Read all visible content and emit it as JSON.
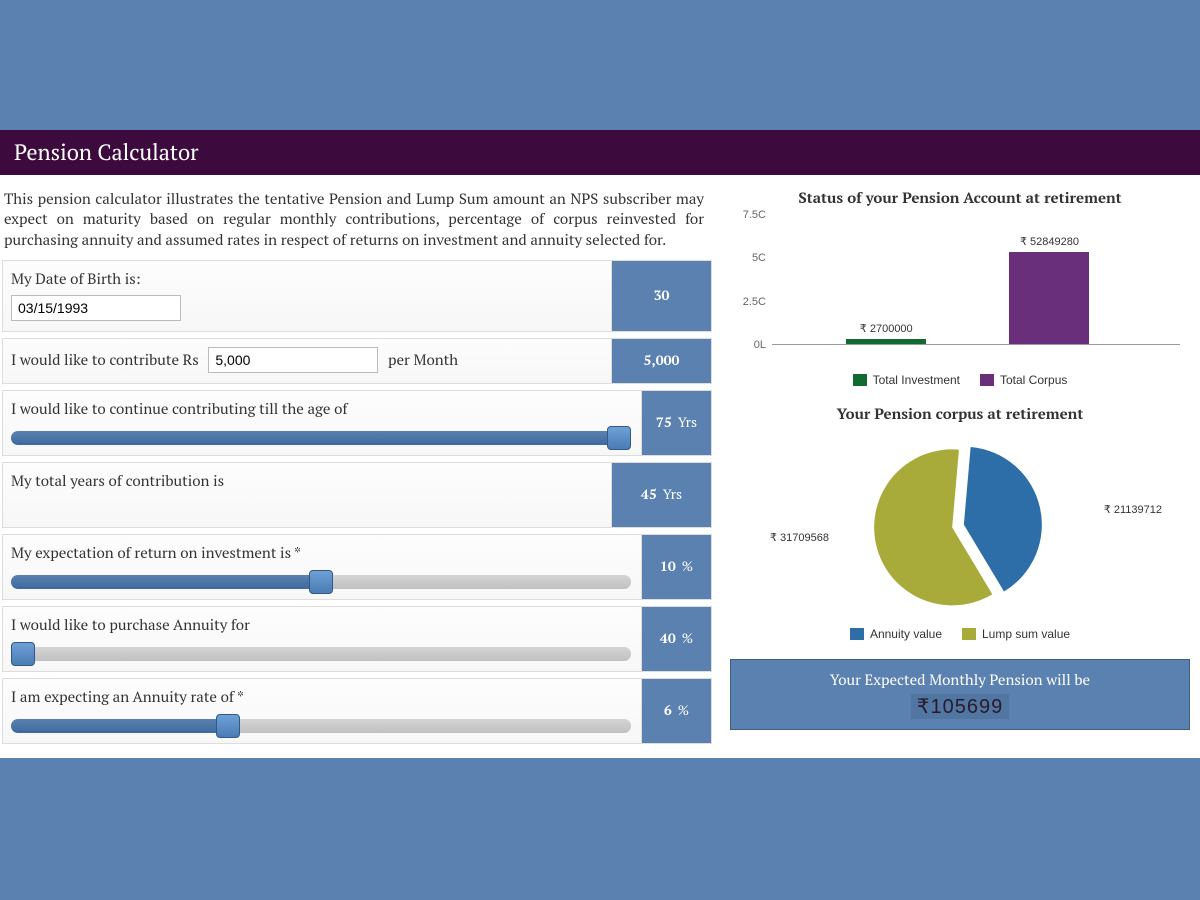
{
  "page": {
    "title": "Pension Calculator",
    "intro": "This pension calculator illustrates the tentative Pension and Lump Sum amount an NPS subscriber may expect on maturity based on regular monthly contributions, percentage of corpus reinvested for purchasing annuity and assumed rates in respect of returns on investment and annuity selected for."
  },
  "colors": {
    "page_bg": "#5a81b0",
    "header_bg": "#3c0a3c",
    "value_box_bg": "#5a81b0",
    "slider_fill": "#5a81b0",
    "bar_investment": "#0f6b2f",
    "bar_corpus": "#6a2f7a",
    "pie_annuity": "#2d6ea8",
    "pie_lumpsum": "#a8aa3a",
    "pie_gap": "#ffffff",
    "pension_amount_text": "#2a1a2a"
  },
  "form": {
    "dob": {
      "label": "My Date of Birth is:",
      "value": "03/15/1993",
      "display": "30",
      "unit": ""
    },
    "contribution": {
      "label_pre": "I would like to contribute Rs",
      "label_post": "per Month",
      "value": "5,000",
      "display": "5,000",
      "unit": ""
    },
    "age_till": {
      "label": "I would like to continue contributing till the age of",
      "display": "75",
      "unit": "Yrs",
      "slider_pct": 98
    },
    "total_years": {
      "label": "My total years of contribution is",
      "display": "45",
      "unit": "Yrs"
    },
    "roi": {
      "label": "My expectation of return on investment is *",
      "display": "10",
      "unit": "%",
      "slider_pct": 50
    },
    "annuity_pct": {
      "label": "I would like to purchase Annuity for",
      "display": "40",
      "unit": "%",
      "slider_pct": 2
    },
    "annuity_rate": {
      "label": "I am expecting an Annuity rate of *",
      "display": "6",
      "unit": "%",
      "slider_pct": 35
    }
  },
  "bar_chart": {
    "title": "Status of your Pension Account at retirement",
    "y_ticks": [
      "7.5C",
      "5C",
      "2.5C",
      "0L"
    ],
    "y_max": 75000000,
    "bars": [
      {
        "label": "₹ 2700000",
        "value": 2700000,
        "color": "#0f6b2f",
        "x_pct": 28
      },
      {
        "label": "₹ 52849280",
        "value": 52849280,
        "color": "#6a2f7a",
        "x_pct": 68
      }
    ],
    "legend": [
      {
        "swatch": "#0f6b2f",
        "text": "Total Investment"
      },
      {
        "swatch": "#6a2f7a",
        "text": "Total Corpus"
      }
    ]
  },
  "pie_chart": {
    "title": "Your Pension corpus at retirement",
    "slices": [
      {
        "label": "₹ 21139712",
        "value": 21139712,
        "color": "#2d6ea8"
      },
      {
        "label": "₹ 31709568",
        "value": 31709568,
        "color": "#a8aa3a"
      }
    ],
    "legend": [
      {
        "swatch": "#2d6ea8",
        "text": "Annuity value"
      },
      {
        "swatch": "#a8aa3a",
        "text": "Lump sum value"
      }
    ]
  },
  "pension_result": {
    "label": "Your Expected Monthly Pension will be",
    "amount": "₹105699"
  }
}
